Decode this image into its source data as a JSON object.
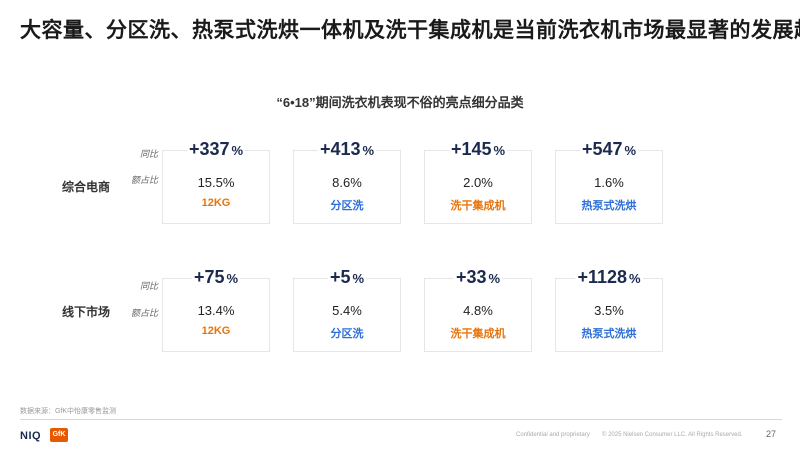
{
  "title": "大容量、分区洗、热泵式洗烘一体机及洗干集成机是当前洗衣机市场最显著的发展趋势",
  "subtitle": "“6•18”期间洗衣机表现不俗的亮点细分品类",
  "side_labels": {
    "growth": "同比",
    "share": "额占比"
  },
  "rows": [
    {
      "label": "综合电商",
      "cards": [
        {
          "growth": "+337",
          "unit": "%",
          "share": "15.5%",
          "category": "12KG",
          "color": "#e8740c"
        },
        {
          "growth": "+413",
          "unit": "%",
          "share": "8.6%",
          "category": "分区洗",
          "color": "#2f6fd6"
        },
        {
          "growth": "+145",
          "unit": "%",
          "share": "2.0%",
          "category": "洗干集成机",
          "color": "#e8740c"
        },
        {
          "growth": "+547",
          "unit": "%",
          "share": "1.6%",
          "category": "热泵式洗烘",
          "color": "#2f6fd6"
        }
      ]
    },
    {
      "label": "线下市场",
      "cards": [
        {
          "growth": "+75",
          "unit": "%",
          "share": "13.4%",
          "category": "12KG",
          "color": "#e8740c"
        },
        {
          "growth": "+5",
          "unit": "%",
          "share": "5.4%",
          "category": "分区洗",
          "color": "#2f6fd6"
        },
        {
          "growth": "+33",
          "unit": "%",
          "share": "4.8%",
          "category": "洗干集成机",
          "color": "#e8740c"
        },
        {
          "growth": "+1128",
          "unit": "%",
          "share": "3.5%",
          "category": "热泵式洗烘",
          "color": "#2f6fd6"
        }
      ]
    }
  ],
  "source": "数据来源：GfK中怡康零售监测",
  "footer": {
    "brand_niq": "NIQ",
    "brand_gfk": "GfK",
    "confidential": "Confidential and proprietary",
    "copyright": "© 2025 Nielsen Consumer LLC. All Rights Reserved.",
    "page_number": "27"
  }
}
